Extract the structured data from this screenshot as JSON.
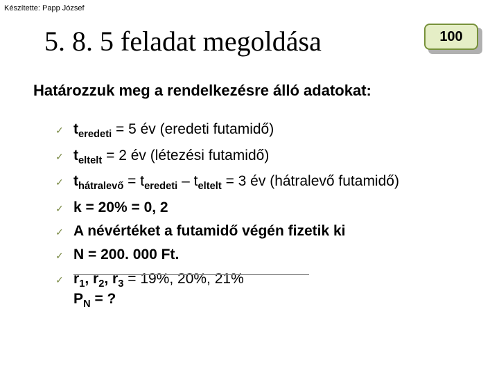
{
  "author": "Készítette: Papp József",
  "title": "5. 8. 5 feladat megoldása",
  "badge": "100",
  "subtitle": "Határozzuk meg a rendelkezésre álló adatokat:",
  "items": {
    "i1": {
      "pre": "t",
      "sub": "eredeti",
      "rest": " = 5 év (eredeti futamidő)"
    },
    "i2": {
      "pre": "t",
      "sub": "eltelt",
      "rest": " = 2 év (létezési futamidő)"
    },
    "i3": {
      "pre": "t",
      "sub": "hátralevő",
      "mid1": " = t",
      "sub2": "eredeti",
      "mid2": " – t",
      "sub3": "eltelt",
      "rest": " = 3 év (hátralevő futamidő)"
    },
    "i4": {
      "text": "k = 20% = 0, 2"
    },
    "i5": {
      "text": "A névértéket a futamidő végén fizetik ki"
    },
    "i6": {
      "text": "N = 200. 000 Ft."
    },
    "i7": {
      "r": "r",
      "s1": "1",
      "c1": ", r",
      "s2": "2",
      "c2": ", r",
      "s3": "3",
      "rest": " = 19%, 20%, 21%"
    }
  },
  "question": {
    "p": "P",
    "sub": "N",
    "rest": " = ?"
  },
  "colors": {
    "badge_bg": "#e5eec6",
    "badge_border": "#77913a",
    "check": "#7a8a45"
  }
}
